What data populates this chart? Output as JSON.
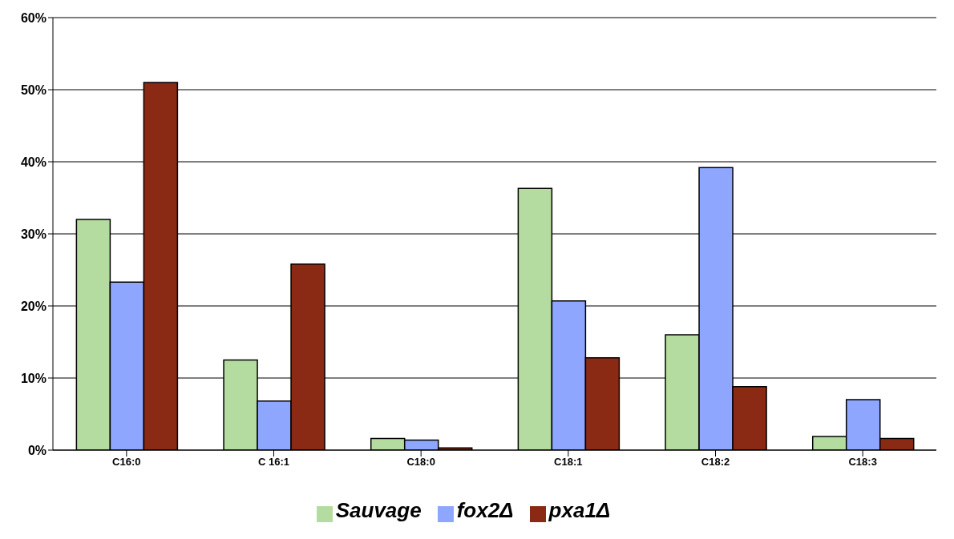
{
  "chart_data": {
    "type": "bar",
    "categories": [
      "C16:0",
      "C 16:1",
      "C18:0",
      "C18:1",
      "C18:2",
      "C18:3"
    ],
    "series": [
      {
        "name": "Sauvage",
        "color": "#b5dca0",
        "values": [
          32.0,
          12.5,
          1.6,
          36.3,
          16.0,
          1.9
        ]
      },
      {
        "name": "fox2Δ",
        "color": "#8fa6ff",
        "values": [
          23.3,
          6.8,
          1.4,
          20.7,
          39.2,
          7.0
        ]
      },
      {
        "name": "pxa1Δ",
        "color": "#8a2a14",
        "values": [
          51.0,
          25.8,
          0.3,
          12.8,
          8.8,
          1.6
        ]
      }
    ],
    "ylim": [
      0,
      60
    ],
    "yticks": [
      {
        "value": 0,
        "label": "0%"
      },
      {
        "value": 10,
        "label": "10%"
      },
      {
        "value": 20,
        "label": "20%"
      },
      {
        "value": 30,
        "label": "30%"
      },
      {
        "value": 40,
        "label": "40%"
      },
      {
        "value": 50,
        "label": "50%"
      },
      {
        "value": 60,
        "label": "60%"
      }
    ],
    "grid": "y",
    "legend": "bottom"
  }
}
